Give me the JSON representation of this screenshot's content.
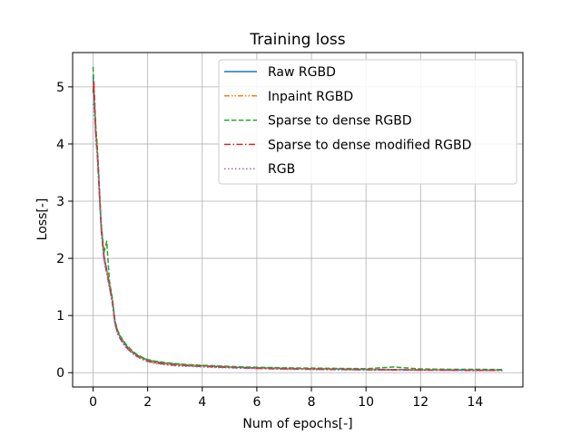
{
  "chart_data": {
    "type": "line",
    "title": "Training loss",
    "xlabel": "Num of epochs[-]",
    "ylabel": "Loss[-]",
    "xlim": [
      -0.75,
      15.75
    ],
    "ylim": [
      -0.25,
      5.6
    ],
    "xticks": [
      0,
      2,
      4,
      6,
      8,
      10,
      12,
      14
    ],
    "yticks": [
      0,
      1,
      2,
      3,
      4,
      5
    ],
    "grid": true,
    "legend_position": "top-right",
    "x": [
      0.0,
      0.03,
      0.06,
      0.1,
      0.15,
      0.2,
      0.25,
      0.3,
      0.4,
      0.5,
      0.6,
      0.7,
      0.8,
      0.9,
      1.0,
      1.2,
      1.4,
      1.6,
      1.8,
      2.0,
      2.3,
      2.6,
      3.0,
      3.5,
      4.0,
      4.5,
      5.0,
      5.5,
      6.0,
      6.5,
      7.0,
      8.0,
      9.0,
      10.0,
      11.0,
      12.0,
      13.0,
      14.0,
      15.0
    ],
    "series": [
      {
        "name": "Raw RGBD",
        "color": "#1f77b4",
        "dash": "",
        "values": [
          5.2,
          4.85,
          4.6,
          4.2,
          3.9,
          3.5,
          3.0,
          2.55,
          2.05,
          1.8,
          1.55,
          1.3,
          0.9,
          0.72,
          0.62,
          0.48,
          0.38,
          0.31,
          0.26,
          0.22,
          0.19,
          0.17,
          0.15,
          0.13,
          0.12,
          0.11,
          0.1,
          0.09,
          0.085,
          0.08,
          0.075,
          0.07,
          0.065,
          0.06,
          0.055,
          0.05,
          0.05,
          0.045,
          0.045
        ]
      },
      {
        "name": "Inpaint RGBD",
        "color": "#ff7f0e",
        "dash": "6,2,1.5,2,1.5,2",
        "values": [
          5.1,
          4.95,
          4.7,
          4.25,
          3.95,
          3.45,
          2.95,
          2.5,
          2.0,
          1.78,
          1.52,
          1.28,
          0.88,
          0.7,
          0.6,
          0.46,
          0.37,
          0.3,
          0.25,
          0.21,
          0.18,
          0.16,
          0.14,
          0.125,
          0.115,
          0.1,
          0.095,
          0.088,
          0.08,
          0.075,
          0.07,
          0.065,
          0.06,
          0.055,
          0.05,
          0.048,
          0.045,
          0.042,
          0.04
        ]
      },
      {
        "name": "Sparse to dense RGBD",
        "color": "#2ca02c",
        "dash": "5.5,2.4",
        "values": [
          5.35,
          5.0,
          4.75,
          4.3,
          4.0,
          3.55,
          3.05,
          2.6,
          2.1,
          2.3,
          1.6,
          1.32,
          0.92,
          0.74,
          0.64,
          0.5,
          0.4,
          0.32,
          0.27,
          0.23,
          0.2,
          0.18,
          0.16,
          0.14,
          0.13,
          0.12,
          0.11,
          0.1,
          0.095,
          0.09,
          0.085,
          0.08,
          0.075,
          0.07,
          0.1,
          0.065,
          0.06,
          0.06,
          0.055
        ]
      },
      {
        "name": "Sparse to dense modified RGBD",
        "color": "#d62728",
        "dash": "7,2.5,1.5,2.5",
        "values": [
          4.9,
          5.1,
          4.55,
          4.15,
          3.85,
          3.4,
          2.95,
          2.5,
          2.0,
          1.75,
          1.5,
          1.25,
          0.86,
          0.69,
          0.59,
          0.45,
          0.36,
          0.29,
          0.24,
          0.2,
          0.17,
          0.15,
          0.13,
          0.12,
          0.11,
          0.1,
          0.09,
          0.082,
          0.075,
          0.07,
          0.065,
          0.06,
          0.055,
          0.05,
          0.048,
          0.045,
          0.042,
          0.04,
          0.038
        ]
      },
      {
        "name": "RGB",
        "color": "#9467bd",
        "dash": "1.5,2.5",
        "values": [
          4.7,
          4.6,
          4.4,
          4.05,
          3.8,
          3.35,
          2.9,
          2.45,
          1.95,
          1.72,
          1.48,
          1.22,
          0.84,
          0.68,
          0.58,
          0.44,
          0.35,
          0.28,
          0.23,
          0.19,
          0.16,
          0.14,
          0.12,
          0.11,
          0.1,
          0.09,
          0.085,
          0.078,
          0.07,
          0.065,
          0.06,
          0.055,
          0.05,
          0.045,
          0.042,
          0.04,
          0.038,
          0.035,
          0.035
        ]
      }
    ]
  }
}
